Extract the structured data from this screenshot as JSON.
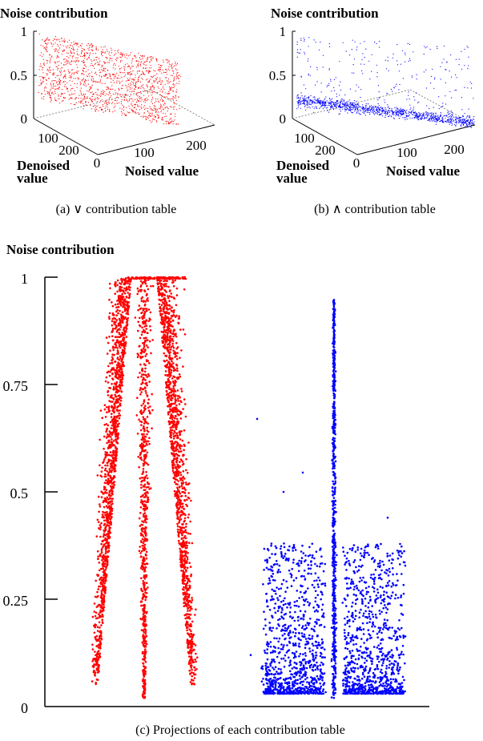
{
  "colors": {
    "red": "#ff0000",
    "blue": "#0000ff",
    "axis": "#000000",
    "grid": "#888888"
  },
  "chart_data": [
    {
      "type": "scatter",
      "variant": "3d",
      "title": "Noise contribution",
      "caption": "(a) ∨ contribution table",
      "zlabel": "Noise contribution",
      "xlabel": "Noised value",
      "ylabel": [
        "Denoised",
        "value"
      ],
      "z_ticks": [
        "0",
        "0.5",
        "1"
      ],
      "x_ticks": [
        "100",
        "200"
      ],
      "y_ticks": [
        "0",
        "100",
        "200"
      ],
      "xlim": [
        0,
        255
      ],
      "ylim": [
        0,
        255
      ],
      "zlim": [
        0,
        1
      ],
      "series": [
        {
          "color": "#ff0000",
          "description_values": "dense cloud, noise contribution mostly 0.2–1.0"
        }
      ]
    },
    {
      "type": "scatter",
      "variant": "3d",
      "title": "Noise contribution",
      "caption": "(b) ∧ contribution table",
      "zlabel": "Noise contribution",
      "xlabel": "Noised value",
      "ylabel": [
        "Denoised",
        "value"
      ],
      "z_ticks": [
        "0",
        "0.5",
        "1"
      ],
      "x_ticks": [
        "100",
        "200"
      ],
      "y_ticks": [
        "0",
        "100",
        "200"
      ],
      "xlim": [
        0,
        255
      ],
      "ylim": [
        0,
        255
      ],
      "zlim": [
        0,
        1
      ],
      "series": [
        {
          "color": "#0000ff",
          "description_values": "dense near 0–0.3, sparse up to 1.0"
        }
      ]
    },
    {
      "type": "scatter",
      "variant": "projection",
      "title": "Noise contribution",
      "caption": "(c) Projections of each contribution table",
      "y_ticks": [
        "0",
        "0.25",
        "0.5",
        "0.75",
        "1"
      ],
      "ylim": [
        0,
        1
      ],
      "series": [
        {
          "color": "#ff0000",
          "min": 0.02,
          "max": 1.0
        },
        {
          "color": "#0000ff",
          "min": 0.02,
          "max": 0.95
        }
      ]
    }
  ]
}
